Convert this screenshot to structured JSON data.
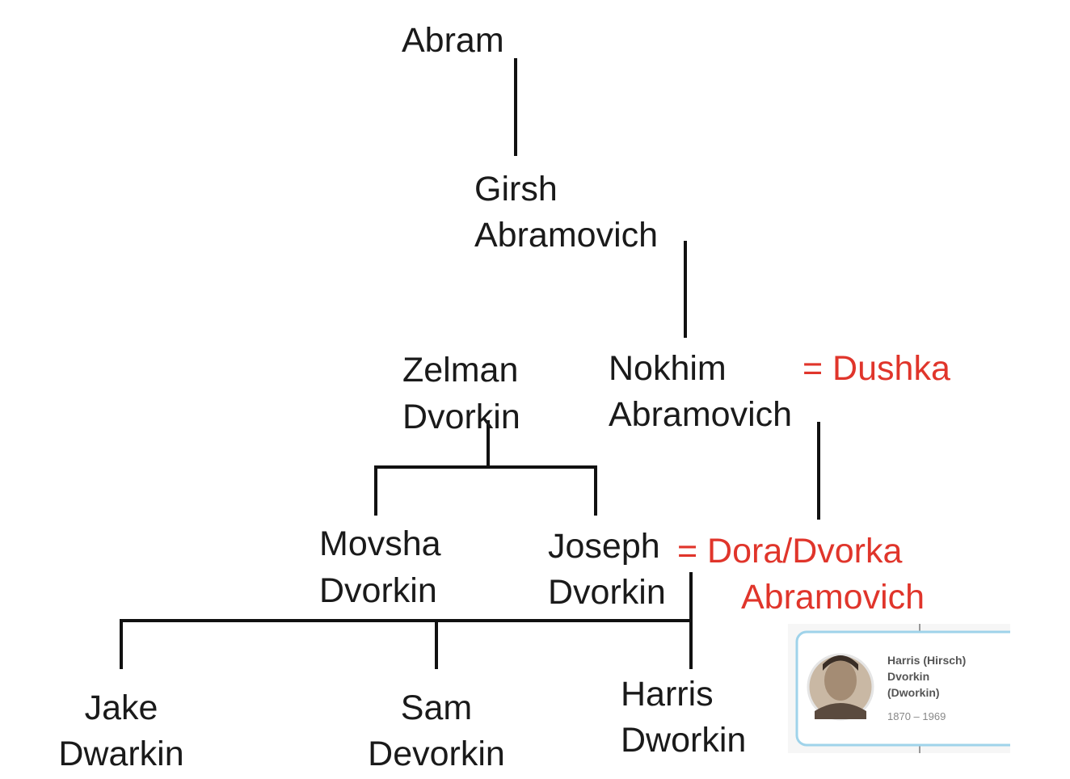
{
  "nodes": [
    {
      "lines": [
        "Abram"
      ]
    },
    {
      "lines": [
        "Girsh",
        "Abramovich"
      ]
    },
    {
      "lines": [
        "Zelman",
        "Dvorkin"
      ]
    },
    {
      "lines": [
        "Nokhim",
        "Abramovich"
      ]
    },
    {
      "lines": [
        "Movsha",
        "Dvorkin"
      ]
    },
    {
      "lines": [
        "Joseph",
        "Dvorkin"
      ]
    },
    {
      "lines": [
        "Jake",
        "Dwarkin"
      ]
    },
    {
      "lines": [
        "Sam",
        "Devorkin"
      ]
    },
    {
      "lines": [
        "Harris",
        "Dworkin"
      ]
    }
  ],
  "spouses": [
    {
      "lines": [
        "= Dushka"
      ]
    },
    {
      "lines": [
        "= Dora/Dvorka",
        "Abramovich"
      ]
    }
  ],
  "card": {
    "lines": [
      "Harris (Hirsch)",
      "Dvorkin",
      "(Dworkin)"
    ],
    "dates": "1870 – 1969"
  }
}
